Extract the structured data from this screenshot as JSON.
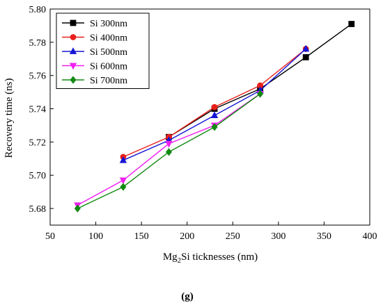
{
  "chart_data": {
    "type": "line",
    "xlabel_main": "Mg",
    "xlabel_sub": "2",
    "xlabel_rest": "Si ticknesses (nm)",
    "ylabel": "Recovery time (ns)",
    "xlim": [
      50,
      400
    ],
    "ylim": [
      5.67,
      5.8
    ],
    "xticks": [
      50,
      100,
      150,
      200,
      250,
      300,
      350,
      400
    ],
    "yticks": [
      5.68,
      5.7,
      5.72,
      5.74,
      5.76,
      5.78,
      5.8
    ],
    "xtick_labels": [
      "50",
      "100",
      "150",
      "200",
      "250",
      "300",
      "350",
      "400"
    ],
    "ytick_labels": [
      "5.68",
      "5.70",
      "5.72",
      "5.74",
      "5.76",
      "5.78",
      "5.80"
    ],
    "legend_position": "top-left",
    "series": [
      {
        "name": "Si 300nm",
        "color": "#000000",
        "marker": "square",
        "x": [
          180,
          230,
          280,
          330,
          380
        ],
        "y": [
          5.723,
          5.74,
          5.752,
          5.771,
          5.791
        ]
      },
      {
        "name": "Si 400nm",
        "color": "#e8201a",
        "marker": "circle",
        "x": [
          130,
          180,
          230,
          280,
          330
        ],
        "y": [
          5.711,
          5.723,
          5.741,
          5.754,
          5.776
        ]
      },
      {
        "name": "Si 500nm",
        "color": "#1515d6",
        "marker": "triangle-up",
        "x": [
          130,
          180,
          230,
          280,
          330
        ],
        "y": [
          5.709,
          5.721,
          5.736,
          5.751,
          5.776
        ]
      },
      {
        "name": "Si 600nm",
        "color": "#f020f0",
        "marker": "triangle-down",
        "x": [
          80,
          130,
          180,
          230,
          280
        ],
        "y": [
          5.682,
          5.697,
          5.719,
          5.73,
          5.749
        ]
      },
      {
        "name": "Si 700nm",
        "color": "#128a12",
        "marker": "diamond",
        "x": [
          80,
          130,
          180,
          230,
          280
        ],
        "y": [
          5.68,
          5.693,
          5.714,
          5.729,
          5.749
        ]
      }
    ]
  },
  "panel_label": "(g)"
}
